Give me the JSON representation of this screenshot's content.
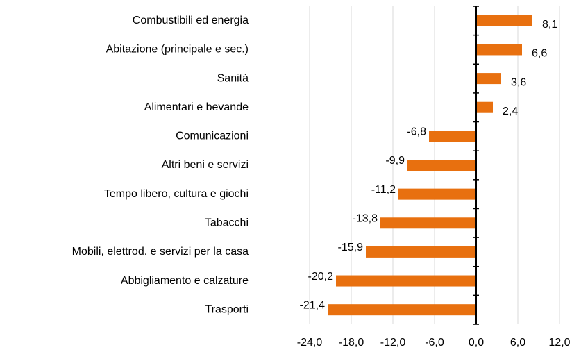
{
  "chart_data": {
    "type": "bar",
    "orientation": "horizontal",
    "categories": [
      "Combustibili ed energia",
      "Abitazione (principale e sec.)",
      "Sanità",
      "Alimentari e bevande",
      "Comunicazioni",
      "Altri beni e servizi",
      "Tempo libero, cultura e giochi",
      "Tabacchi",
      "Mobili, elettrod. e servizi per la casa",
      "Abbigliamento e calzature",
      "Trasporti"
    ],
    "values": [
      8.1,
      6.6,
      3.6,
      2.4,
      -6.8,
      -9.9,
      -11.2,
      -13.8,
      -15.9,
      -20.2,
      -21.4
    ],
    "value_labels": [
      "8,1",
      "6,6",
      "3,6",
      "2,4",
      "-6,8",
      "-9,9",
      "-11,2",
      "-13,8",
      "-15,9",
      "-20,2",
      "-21,4"
    ],
    "color": "#e8700f",
    "xlim": [
      -24,
      12
    ],
    "xticks": [
      {
        "value": -24,
        "label": "-24,0"
      },
      {
        "value": -18,
        "label": "-18,0"
      },
      {
        "value": -12,
        "label": "-12,0"
      },
      {
        "value": -6,
        "label": "-6,0"
      },
      {
        "value": 0,
        "label": "0,0"
      },
      {
        "value": 6,
        "label": "6,0"
      },
      {
        "value": 12,
        "label": "12,0"
      }
    ],
    "grid": true
  }
}
